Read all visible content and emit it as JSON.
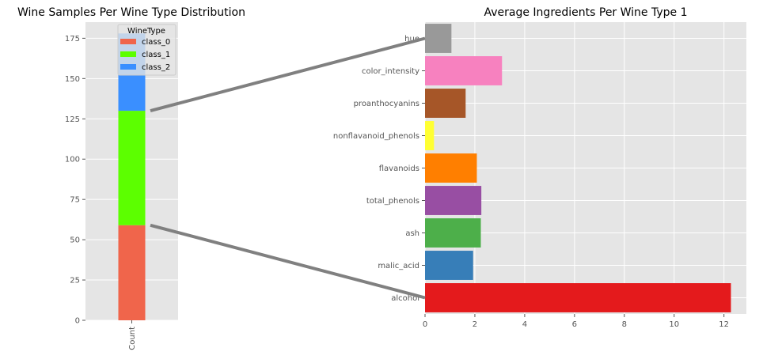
{
  "chart_data": [
    {
      "type": "bar",
      "stacked": true,
      "title": "Wine Samples Per Wine Type Distribution",
      "categories": [
        "Count"
      ],
      "series": [
        {
          "name": "class_0",
          "values": [
            59
          ],
          "color": "#F0654B"
        },
        {
          "name": "class_1",
          "values": [
            71
          ],
          "color": "#5CFF00"
        },
        {
          "name": "class_2",
          "values": [
            48
          ],
          "color": "#3A8FFF"
        }
      ],
      "ylim": [
        0,
        185
      ],
      "yticks": [
        "0",
        "25",
        "50",
        "75",
        "100",
        "125",
        "150",
        "175"
      ],
      "legend": {
        "title": "WineType",
        "placement": "top-center"
      },
      "grid": true,
      "background": "#E5E5E5"
    },
    {
      "type": "bar",
      "orientation": "horizontal",
      "title": "Average Ingredients Per Wine Type 1",
      "categories": [
        "alcohol",
        "malic_acid",
        "ash",
        "total_phenols",
        "flavanoids",
        "nonflavanoid_phenols",
        "proanthocyanins",
        "color_intensity",
        "hue"
      ],
      "values": [
        12.28,
        1.93,
        2.24,
        2.26,
        2.08,
        0.36,
        1.63,
        3.09,
        1.06
      ],
      "colors": [
        "#E41A1C",
        "#377EB8",
        "#4DAF4A",
        "#984EA3",
        "#FF7F00",
        "#FFFF33",
        "#A65628",
        "#F781BF",
        "#999999"
      ],
      "xlim": [
        0,
        12.9
      ],
      "xticks": [
        "0",
        "2",
        "4",
        "6",
        "8",
        "10",
        "12"
      ],
      "grid": true,
      "background": "#E5E5E5"
    }
  ],
  "connector_color": "#808080"
}
